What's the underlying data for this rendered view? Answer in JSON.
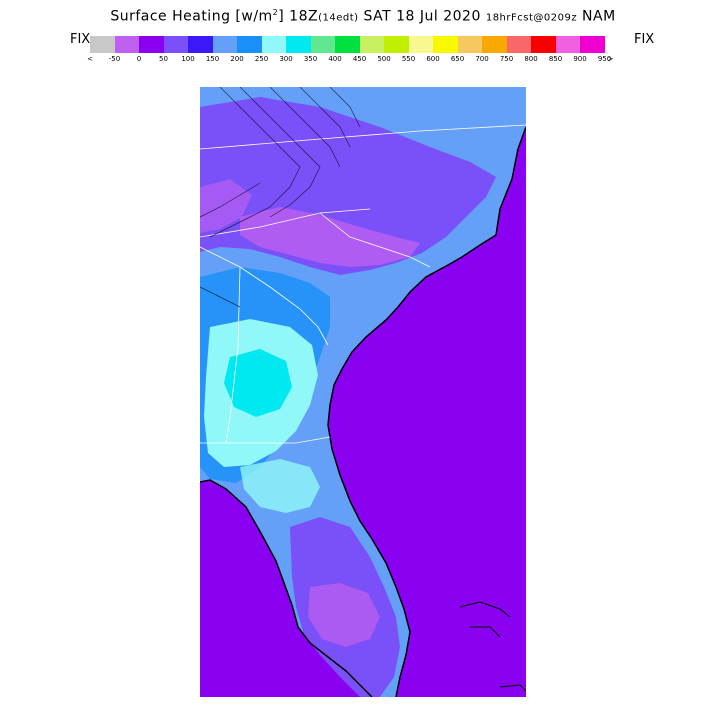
{
  "title": {
    "main": "Surface Heating [w/m",
    "sup": "2",
    "after_unit": "] 18Z",
    "local_time": "(14edt)",
    "date": " SAT 18 Jul 2020 ",
    "forecast": "18hrFcst@0209z",
    "model": " NAM"
  },
  "fix_left": "FIX",
  "fix_right": "FIX",
  "legend": {
    "colors": [
      "#c8c8c8",
      "#c060f0",
      "#8a00f0",
      "#7a50f8",
      "#3c18f8",
      "#64a0f8",
      "#1890f8",
      "#90f8f8",
      "#00e8f0",
      "#60e890",
      "#00e040",
      "#c8f060",
      "#c0f000",
      "#f8f890",
      "#f8f800",
      "#f8c860",
      "#f8a800",
      "#f86868",
      "#f80000",
      "#f060e0",
      "#f000d0"
    ],
    "ticks": [
      "<",
      "-50",
      "0",
      "50",
      "100",
      "150",
      "200",
      "250",
      "300",
      "350",
      "400",
      "450",
      "500",
      "550",
      "600",
      "650",
      "700",
      "750",
      "800",
      "850",
      "900",
      "950",
      ">"
    ]
  },
  "map_colors": {
    "ocean": "#8a00f0",
    "base_land": "#64a0f8",
    "low": "#7a50f8",
    "very_low": "#c060f0",
    "mid": "#1890f8",
    "high": "#90f8f8",
    "peak": "#00e8f0"
  }
}
